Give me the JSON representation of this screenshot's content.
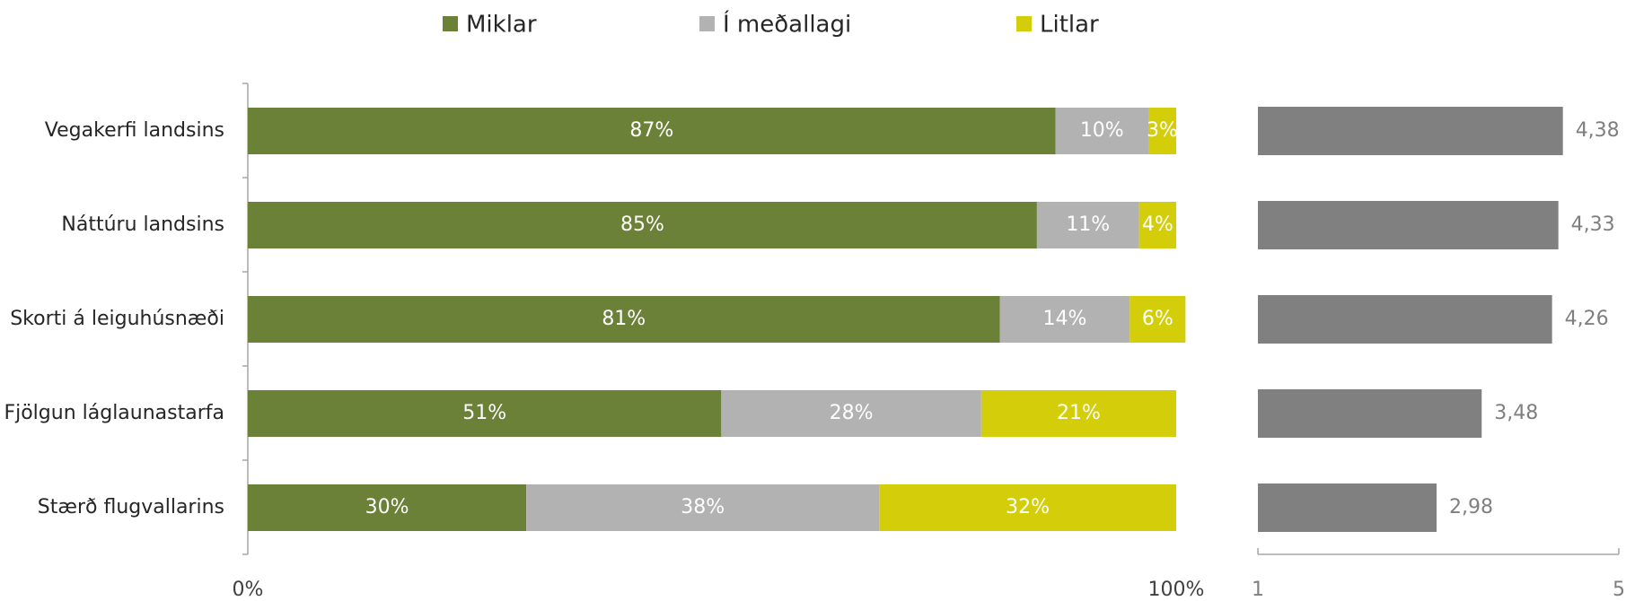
{
  "chart_data": [
    {
      "type": "stacked-bar-horizontal",
      "categories": [
        "Vegakerfi landsins",
        "Náttúru landsins",
        "Skorti á leiguhúsnæði",
        "Fjölgun láglaunastarfa",
        "Stærð  flugvallarins"
      ],
      "series": [
        {
          "name": "Miklar",
          "color": "#6a8137",
          "values": [
            87,
            85,
            81,
            51,
            30
          ],
          "value_labels": [
            "87%",
            "85%",
            "81%",
            "51%",
            "30%"
          ]
        },
        {
          "name": "Í meðallagi",
          "color": "#b2b2b2",
          "values": [
            10,
            11,
            14,
            28,
            38
          ],
          "value_labels": [
            "10%",
            "11%",
            "14%",
            "28%",
            "38%"
          ]
        },
        {
          "name": "Litlar",
          "color": "#d4ce0a",
          "values": [
            3,
            4,
            6,
            21,
            32
          ],
          "value_labels": [
            "3%",
            "4%",
            "6%",
            "21%",
            "32%"
          ]
        }
      ],
      "xlim": [
        0,
        100
      ],
      "xticks": [
        {
          "value": 0,
          "label": "0%"
        },
        {
          "value": 100,
          "label": "100%"
        }
      ],
      "legend": "top"
    },
    {
      "type": "bar-horizontal",
      "values": [
        4.38,
        4.33,
        4.26,
        3.48,
        2.98
      ],
      "value_labels": [
        "4,38",
        "4,33",
        "4,26",
        "3,48",
        "2,98"
      ],
      "color": "#808080",
      "xlim": [
        1,
        5
      ],
      "xticks": [
        1,
        5
      ]
    }
  ]
}
